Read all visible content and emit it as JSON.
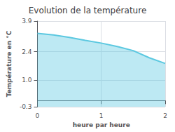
{
  "chart_data": {
    "type": "area",
    "title": "Evolution de la température",
    "xlabel": "heure par heure",
    "ylabel": "Température en °C",
    "x": [
      0,
      0.25,
      0.5,
      0.75,
      1.0,
      1.25,
      1.5,
      1.75,
      2.0
    ],
    "values": [
      3.3,
      3.22,
      3.1,
      2.95,
      2.82,
      2.65,
      2.45,
      2.1,
      1.82
    ],
    "color": "#5bc8e0",
    "xlim": [
      0,
      2
    ],
    "ylim": [
      -0.3,
      3.9
    ],
    "xticks": [
      0,
      1,
      2
    ],
    "yticks": [
      -0.3,
      {
        "value": 1.0,
        "label": "1.0"
      },
      2.4,
      3.9
    ],
    "grid": true
  }
}
